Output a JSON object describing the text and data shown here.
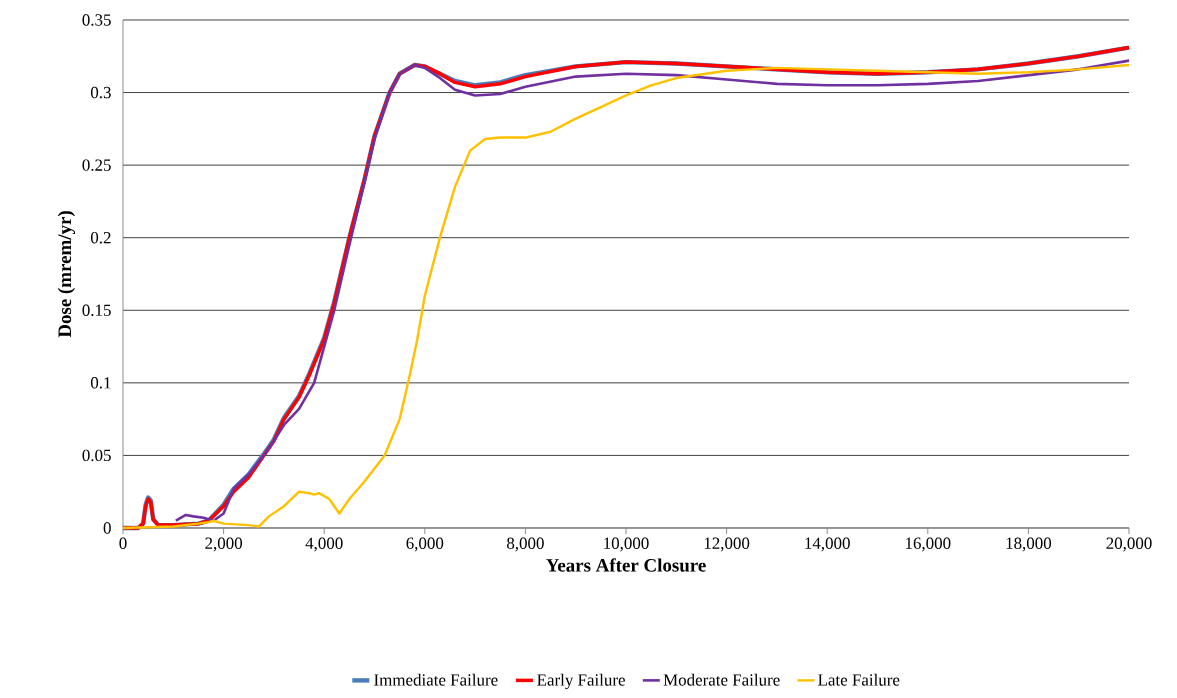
{
  "chart_data": {
    "type": "line",
    "xlabel": "Years After Closure",
    "ylabel": "Dose (mrem/yr)",
    "xlim": [
      0,
      20000
    ],
    "ylim": [
      0,
      0.35
    ],
    "xticks": [
      0,
      {
        "value": 2000,
        "label": "2,000"
      },
      {
        "value": 4000,
        "label": "4,000"
      },
      {
        "value": 6000,
        "label": "6,000"
      },
      {
        "value": 8000,
        "label": "8,000"
      },
      {
        "value": 10000,
        "label": "10,000"
      },
      {
        "value": 12000,
        "label": "12,000"
      },
      {
        "value": 14000,
        "label": "14,000"
      },
      {
        "value": 16000,
        "label": "16,000"
      },
      {
        "value": 18000,
        "label": "18,000"
      },
      {
        "value": 20000,
        "label": "20,000"
      }
    ],
    "yticks": [
      0,
      0.05,
      0.1,
      0.15,
      0.2,
      0.25,
      0.3,
      0.35
    ],
    "grid": "y",
    "legend": "bottom",
    "series": [
      {
        "name": "Immediate Failure",
        "color": "#4a7ebb",
        "x": [
          0,
          300,
          400,
          450,
          500,
          550,
          600,
          700,
          1000,
          1500,
          1700,
          2000,
          2200,
          2500,
          2800,
          3000,
          3200,
          3500,
          3700,
          4000,
          4200,
          4500,
          4800,
          5000,
          5300,
          5500,
          5800,
          6000,
          6300,
          6600,
          7000,
          7500,
          8000,
          9000,
          10000,
          11000,
          12000,
          13000,
          14000,
          15000,
          16000,
          17000,
          18000,
          19000,
          20000
        ],
        "values": [
          0,
          0,
          0.003,
          0.016,
          0.021,
          0.019,
          0.006,
          0.002,
          0.002,
          0.003,
          0.005,
          0.016,
          0.027,
          0.037,
          0.051,
          0.061,
          0.076,
          0.091,
          0.106,
          0.131,
          0.156,
          0.2,
          0.24,
          0.27,
          0.3,
          0.313,
          0.319,
          0.318,
          0.313,
          0.308,
          0.305,
          0.307,
          0.312,
          0.318,
          0.321,
          0.32,
          0.318,
          0.316,
          0.314,
          0.313,
          0.314,
          0.316,
          0.32,
          0.325,
          0.331
        ]
      },
      {
        "name": "Early Failure",
        "color": "#ff0000",
        "x": [
          0,
          300,
          400,
          450,
          500,
          550,
          600,
          700,
          1000,
          1500,
          1700,
          2000,
          2200,
          2500,
          2800,
          3000,
          3200,
          3500,
          3700,
          4000,
          4200,
          4500,
          4800,
          5000,
          5300,
          5500,
          5800,
          6000,
          6300,
          6600,
          7000,
          7500,
          8000,
          9000,
          10000,
          11000,
          12000,
          13000,
          14000,
          15000,
          16000,
          17000,
          18000,
          19000,
          20000
        ],
        "values": [
          0,
          0,
          0.003,
          0.015,
          0.02,
          0.018,
          0.006,
          0.002,
          0.002,
          0.003,
          0.005,
          0.015,
          0.025,
          0.035,
          0.05,
          0.06,
          0.075,
          0.09,
          0.105,
          0.13,
          0.155,
          0.2,
          0.24,
          0.27,
          0.3,
          0.313,
          0.319,
          0.318,
          0.313,
          0.307,
          0.304,
          0.306,
          0.311,
          0.318,
          0.321,
          0.32,
          0.318,
          0.316,
          0.314,
          0.313,
          0.314,
          0.316,
          0.32,
          0.325,
          0.331
        ]
      },
      {
        "name": "Moderate Failure",
        "color": "#7030a0",
        "x": [
          1050,
          1250,
          1400,
          1600,
          1800,
          2000,
          2200,
          2500,
          2800,
          3000,
          3200,
          3500,
          3800,
          4000,
          4200,
          4500,
          4800,
          5000,
          5300,
          5500,
          5800,
          6000,
          6300,
          6600,
          7000,
          7500,
          8000,
          9000,
          10000,
          11000,
          12000,
          13000,
          14000,
          15000,
          16000,
          17000,
          18000,
          19000,
          20000
        ],
        "values": [
          0.005,
          0.009,
          0.008,
          0.007,
          0.005,
          0.01,
          0.027,
          0.037,
          0.05,
          0.06,
          0.071,
          0.082,
          0.1,
          0.125,
          0.15,
          0.195,
          0.238,
          0.268,
          0.3,
          0.313,
          0.319,
          0.317,
          0.31,
          0.302,
          0.298,
          0.299,
          0.304,
          0.311,
          0.313,
          0.312,
          0.309,
          0.306,
          0.305,
          0.305,
          0.306,
          0.308,
          0.312,
          0.316,
          0.322
        ]
      },
      {
        "name": "Late Failure",
        "color": "#ffc000",
        "x": [
          0,
          1000,
          1500,
          1700,
          1800,
          2000,
          2500,
          2700,
          2900,
          3200,
          3500,
          3700,
          3800,
          3900,
          4100,
          4300,
          4500,
          4800,
          5200,
          5500,
          5700,
          5850,
          6000,
          6300,
          6600,
          6900,
          7200,
          7500,
          8000,
          8500,
          9000,
          9500,
          10000,
          10500,
          11000,
          12000,
          13000,
          14000,
          15000,
          16000,
          17000,
          18000,
          19000,
          20000
        ],
        "values": [
          0,
          0.001,
          0.003,
          0.004,
          0.005,
          0.003,
          0.002,
          0.001,
          0.008,
          0.015,
          0.025,
          0.024,
          0.023,
          0.024,
          0.02,
          0.01,
          0.02,
          0.032,
          0.05,
          0.075,
          0.105,
          0.13,
          0.16,
          0.2,
          0.235,
          0.26,
          0.268,
          0.269,
          0.269,
          0.273,
          0.282,
          0.29,
          0.298,
          0.305,
          0.31,
          0.315,
          0.317,
          0.316,
          0.315,
          0.314,
          0.313,
          0.314,
          0.316,
          0.319
        ]
      }
    ]
  }
}
